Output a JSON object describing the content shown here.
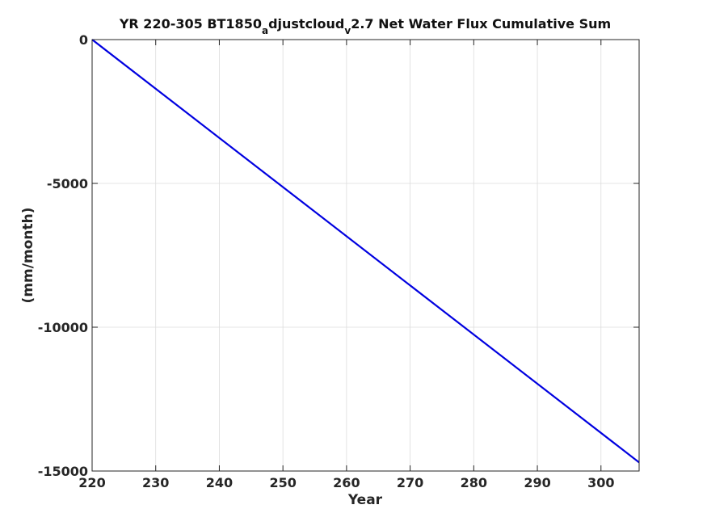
{
  "chart_data": {
    "type": "line",
    "title": {
      "prefix": "YR 220-305 BT1850",
      "sub1": "a",
      "mid": "djustcloud",
      "sub2": "v",
      "suffix": "2.7 Net Water Flux Cumulative Sum"
    },
    "xlabel": "Year",
    "ylabel": "(mm/month)",
    "xlim": [
      220,
      306
    ],
    "ylim": [
      -15000,
      0
    ],
    "x_ticks": [
      220,
      230,
      240,
      250,
      260,
      270,
      280,
      290,
      300
    ],
    "y_ticks": [
      0,
      -5000,
      -10000,
      -15000
    ],
    "grid": true,
    "series": [
      {
        "color": "#0000e0",
        "x": [
          220,
          306
        ],
        "y": [
          0,
          -14700
        ]
      }
    ]
  }
}
